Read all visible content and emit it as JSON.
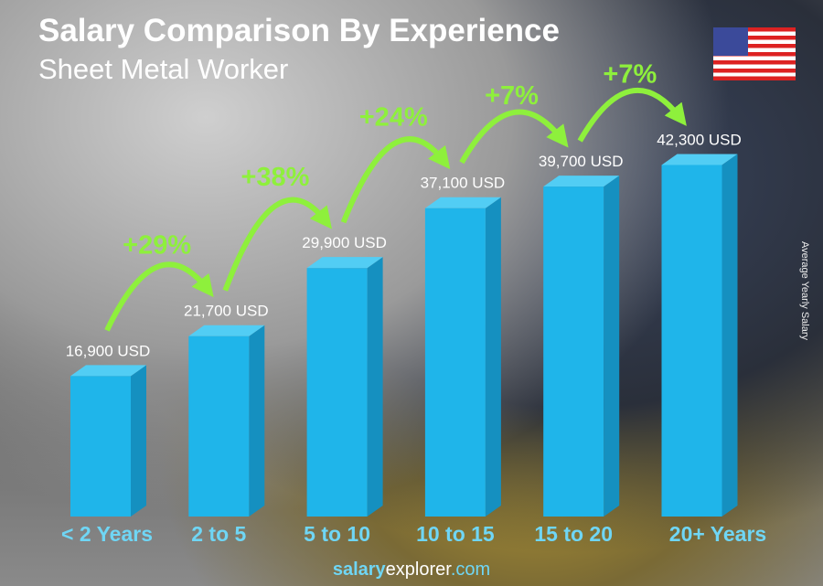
{
  "header": {
    "title": "Salary Comparison By Experience",
    "subtitle": "Sheet Metal Worker"
  },
  "y_axis_label": "Average Yearly Salary",
  "footer": {
    "brand_bold": "salary",
    "brand": "explorer",
    ".com": ".com"
  },
  "flag": "us-flag",
  "colors": {
    "bar": "#1fb5ea",
    "bar_side": "#1590c0",
    "bar_top": "#52cdf4",
    "increase": "#8ef03c",
    "category": "#6fd6f5"
  },
  "chart_data": {
    "type": "bar",
    "categories": [
      "< 2 Years",
      "2 to 5",
      "5 to 10",
      "10 to 15",
      "15 to 20",
      "20+ Years"
    ],
    "values": [
      16900,
      21700,
      29900,
      37100,
      39700,
      42300
    ],
    "value_labels": [
      "16,900 USD",
      "21,700 USD",
      "29,900 USD",
      "37,100 USD",
      "39,700 USD",
      "42,300 USD"
    ],
    "increases": [
      "+29%",
      "+38%",
      "+24%",
      "+7%",
      "+7%"
    ],
    "ylabel": "Average Yearly Salary",
    "ylim": [
      0,
      44000
    ],
    "grid": false
  }
}
